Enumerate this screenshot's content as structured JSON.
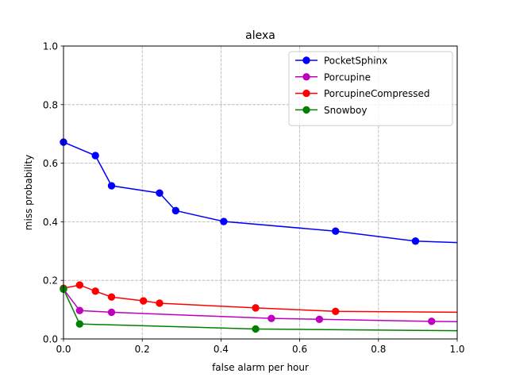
{
  "chart_data": {
    "type": "line",
    "title": "alexa",
    "xlabel": "false alarm per hour",
    "ylabel": "miss probability",
    "xlim": [
      0.0,
      1.0
    ],
    "ylim": [
      0.0,
      1.0
    ],
    "x_ticks": [
      0.0,
      0.2,
      0.4,
      0.6,
      0.8,
      1.0
    ],
    "y_ticks": [
      0.0,
      0.2,
      0.4,
      0.6,
      0.8,
      1.0
    ],
    "x_tick_labels": [
      "0.0",
      "0.2",
      "0.4",
      "0.6",
      "0.8",
      "1.0"
    ],
    "y_tick_labels": [
      "0.0",
      "0.2",
      "0.4",
      "0.6",
      "0.8",
      "1.0"
    ],
    "grid": true,
    "legend_position": "top-right",
    "series": [
      {
        "name": "PocketSphinx",
        "color": "#0000ff",
        "x": [
          0.0,
          0.081,
          0.122,
          0.244,
          0.285,
          0.407,
          0.691,
          0.894,
          1.0
        ],
        "y": [
          0.672,
          0.626,
          0.523,
          0.498,
          0.438,
          0.401,
          0.368,
          0.334,
          0.329
        ],
        "markers": [
          true,
          true,
          true,
          true,
          true,
          true,
          true,
          true,
          false
        ]
      },
      {
        "name": "Porcupine",
        "color": "#bf00bf",
        "x": [
          0.0,
          0.041,
          0.122,
          0.528,
          0.65,
          0.935,
          1.0
        ],
        "y": [
          0.17,
          0.097,
          0.091,
          0.07,
          0.067,
          0.06,
          0.059
        ],
        "markers": [
          true,
          true,
          true,
          true,
          true,
          true,
          false
        ]
      },
      {
        "name": "PorcupineCompressed",
        "color": "#ff0000",
        "x": [
          0.0,
          0.041,
          0.081,
          0.122,
          0.203,
          0.244,
          0.488,
          0.691,
          1.0
        ],
        "y": [
          0.173,
          0.184,
          0.163,
          0.143,
          0.13,
          0.122,
          0.106,
          0.094,
          0.091
        ],
        "markers": [
          true,
          true,
          true,
          true,
          true,
          true,
          true,
          true,
          false
        ]
      },
      {
        "name": "Snowboy",
        "color": "#008000",
        "x": [
          0.0,
          0.041,
          0.488,
          1.0
        ],
        "y": [
          0.17,
          0.051,
          0.034,
          0.028
        ],
        "markers": [
          true,
          true,
          true,
          false
        ]
      }
    ]
  }
}
